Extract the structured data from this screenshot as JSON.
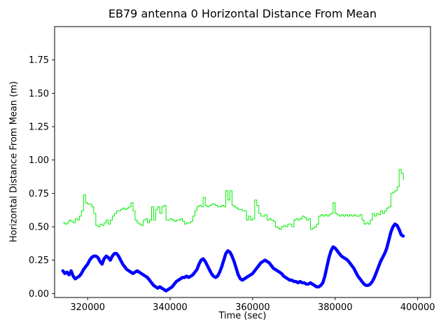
{
  "chart_data": {
    "type": "line",
    "title": "EB79 antenna 0 Horizontal Distance From Mean",
    "xlabel": "Time (sec)",
    "ylabel": "Horizontal Distance From Mean (m)",
    "xlim": [
      312000,
      403100
    ],
    "ylim": [
      -0.03,
      2.0
    ],
    "xticks": [
      320000,
      340000,
      360000,
      380000,
      400000
    ],
    "xtick_labels": [
      "320000",
      "340000",
      "360000",
      "380000",
      "400000"
    ],
    "yticks": [
      0.0,
      0.25,
      0.5,
      0.75,
      1.0,
      1.25,
      1.5,
      1.75
    ],
    "ytick_labels": [
      "0.00",
      "0.25",
      "0.50",
      "0.75",
      "1.00",
      "1.25",
      "1.50",
      "1.75"
    ],
    "grid": false,
    "legend": null,
    "series": [
      {
        "name": "green-line",
        "color": "#00ee00",
        "width": 1,
        "step": true,
        "x0": 314000,
        "dx": 500,
        "y": [
          0.53,
          0.52,
          0.53,
          0.55,
          0.54,
          0.53,
          0.56,
          0.55,
          0.58,
          0.62,
          0.74,
          0.68,
          0.67,
          0.67,
          0.65,
          0.6,
          0.51,
          0.5,
          0.52,
          0.51,
          0.53,
          0.55,
          0.52,
          0.55,
          0.58,
          0.6,
          0.62,
          0.62,
          0.63,
          0.64,
          0.63,
          0.64,
          0.65,
          0.68,
          0.62,
          0.55,
          0.53,
          0.52,
          0.51,
          0.55,
          0.56,
          0.53,
          0.55,
          0.65,
          0.55,
          0.63,
          0.65,
          0.6,
          0.65,
          0.66,
          0.55,
          0.55,
          0.56,
          0.55,
          0.54,
          0.55,
          0.55,
          0.56,
          0.54,
          0.52,
          0.53,
          0.53,
          0.54,
          0.58,
          0.62,
          0.65,
          0.66,
          0.65,
          0.72,
          0.66,
          0.65,
          0.66,
          0.67,
          0.67,
          0.66,
          0.65,
          0.65,
          0.66,
          0.65,
          0.77,
          0.7,
          0.77,
          0.66,
          0.65,
          0.64,
          0.63,
          0.63,
          0.62,
          0.62,
          0.55,
          0.58,
          0.55,
          0.56,
          0.7,
          0.66,
          0.6,
          0.58,
          0.58,
          0.59,
          0.55,
          0.56,
          0.55,
          0.54,
          0.5,
          0.49,
          0.48,
          0.5,
          0.51,
          0.5,
          0.52,
          0.52,
          0.5,
          0.55,
          0.56,
          0.55,
          0.56,
          0.58,
          0.57,
          0.55,
          0.56,
          0.48,
          0.49,
          0.5,
          0.52,
          0.58,
          0.59,
          0.58,
          0.59,
          0.58,
          0.59,
          0.6,
          0.68,
          0.6,
          0.59,
          0.58,
          0.59,
          0.58,
          0.59,
          0.58,
          0.59,
          0.58,
          0.59,
          0.58,
          0.58,
          0.59,
          0.55,
          0.52,
          0.53,
          0.52,
          0.55,
          0.6,
          0.58,
          0.6,
          0.59,
          0.62,
          0.6,
          0.62,
          0.64,
          0.65,
          0.75,
          0.76,
          0.77,
          0.8,
          0.93,
          0.9,
          0.85
        ]
      },
      {
        "name": "blue-line",
        "color": "#0000ff",
        "width": 4.5,
        "step": false,
        "x0": 314000,
        "dx": 500,
        "y": [
          0.17,
          0.15,
          0.16,
          0.14,
          0.17,
          0.13,
          0.11,
          0.12,
          0.13,
          0.15,
          0.18,
          0.2,
          0.22,
          0.25,
          0.27,
          0.28,
          0.28,
          0.27,
          0.24,
          0.22,
          0.26,
          0.28,
          0.27,
          0.25,
          0.28,
          0.3,
          0.3,
          0.28,
          0.25,
          0.22,
          0.2,
          0.18,
          0.17,
          0.16,
          0.15,
          0.16,
          0.17,
          0.16,
          0.15,
          0.14,
          0.13,
          0.12,
          0.1,
          0.08,
          0.06,
          0.05,
          0.04,
          0.05,
          0.04,
          0.03,
          0.02,
          0.03,
          0.04,
          0.05,
          0.07,
          0.09,
          0.1,
          0.11,
          0.12,
          0.12,
          0.13,
          0.12,
          0.13,
          0.14,
          0.16,
          0.18,
          0.22,
          0.25,
          0.26,
          0.24,
          0.21,
          0.18,
          0.15,
          0.13,
          0.12,
          0.13,
          0.16,
          0.2,
          0.25,
          0.3,
          0.32,
          0.31,
          0.28,
          0.24,
          0.19,
          0.14,
          0.11,
          0.1,
          0.11,
          0.12,
          0.13,
          0.14,
          0.15,
          0.17,
          0.19,
          0.21,
          0.23,
          0.24,
          0.25,
          0.24,
          0.23,
          0.21,
          0.19,
          0.18,
          0.17,
          0.16,
          0.15,
          0.13,
          0.12,
          0.11,
          0.1,
          0.1,
          0.09,
          0.09,
          0.08,
          0.09,
          0.08,
          0.08,
          0.07,
          0.07,
          0.08,
          0.07,
          0.06,
          0.05,
          0.05,
          0.06,
          0.08,
          0.13,
          0.2,
          0.27,
          0.32,
          0.35,
          0.34,
          0.32,
          0.3,
          0.28,
          0.27,
          0.26,
          0.25,
          0.23,
          0.21,
          0.19,
          0.16,
          0.13,
          0.11,
          0.09,
          0.07,
          0.06,
          0.06,
          0.07,
          0.09,
          0.12,
          0.16,
          0.2,
          0.24,
          0.27,
          0.3,
          0.34,
          0.4,
          0.46,
          0.5,
          0.52,
          0.51,
          0.48,
          0.44,
          0.43
        ]
      }
    ]
  }
}
